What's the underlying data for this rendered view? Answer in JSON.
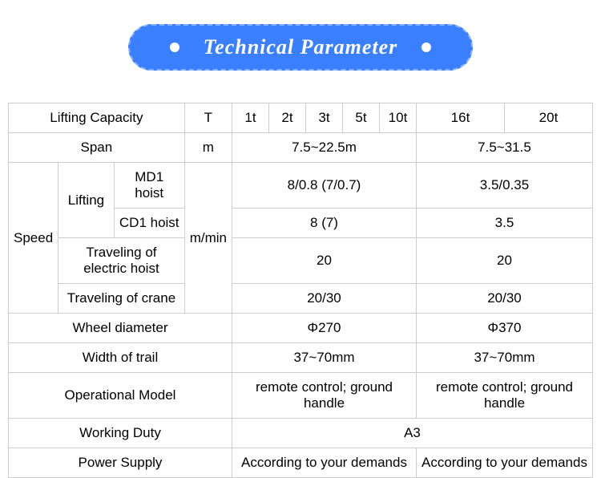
{
  "banner": {
    "title": "Technical Parameter"
  },
  "colors": {
    "banner_bg": "#3a7fff",
    "banner_text": "#ffffff",
    "border": "#cccccc",
    "text": "#000000",
    "background": "#ffffff"
  },
  "table": {
    "lifting_capacity": {
      "label": "Lifting Capacity",
      "unit": "T",
      "values": [
        "1t",
        "2t",
        "3t",
        "5t",
        "10t",
        "16t",
        "20t"
      ]
    },
    "span": {
      "label": "Span",
      "unit": "m",
      "group_a": "7.5~22.5m",
      "group_b": "7.5~31.5"
    },
    "speed": {
      "label": "Speed",
      "unit": "m/min",
      "lifting": {
        "label": "Lifting",
        "md1": {
          "label": "MD1 hoist",
          "group_a": "8/0.8 (7/0.7)",
          "group_b": "3.5/0.35"
        },
        "cd1": {
          "label": "CD1 hoist",
          "group_a": "8 (7)",
          "group_b": "3.5"
        }
      },
      "travel_hoist": {
        "label": "Traveling of electric hoist",
        "group_a": "20",
        "group_b": "20"
      },
      "travel_crane": {
        "label": "Traveling of crane",
        "group_a": "20/30",
        "group_b": "20/30"
      }
    },
    "wheel_diameter": {
      "label": "Wheel diameter",
      "group_a": "Φ270",
      "group_b": "Φ370"
    },
    "width_of_trail": {
      "label": "Width of trail",
      "group_a": "37~70mm",
      "group_b": "37~70mm"
    },
    "operational_model": {
      "label": "Operational Model",
      "group_a": "remote control; ground handle",
      "group_b": "remote control; ground handle"
    },
    "working_duty": {
      "label": "Working Duty",
      "value": "A3"
    },
    "power_supply": {
      "label": "Power Supply",
      "group_a": "According to your demands",
      "group_b": "According to your demands"
    }
  }
}
